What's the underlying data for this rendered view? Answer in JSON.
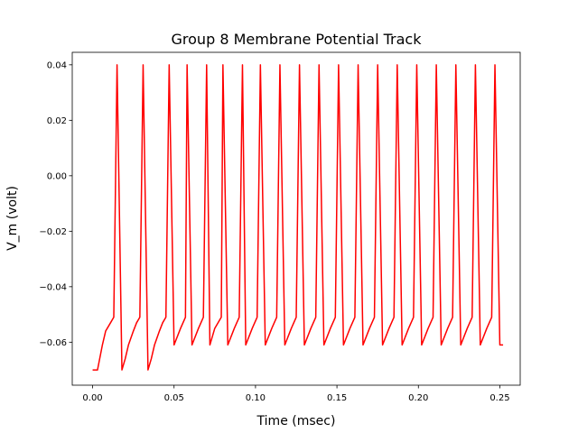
{
  "chart_data": {
    "type": "line",
    "title": "Group 8 Membrane Potential Track",
    "xlabel": "Time (msec)",
    "ylabel": "V_m (volt)",
    "xlim": [
      -0.0125,
      0.2625
    ],
    "ylim": [
      -0.0755,
      0.0445
    ],
    "xticks": [
      0.0,
      0.05,
      0.1,
      0.15,
      0.2,
      0.25
    ],
    "xtick_labels": [
      "0.00",
      "0.05",
      "0.10",
      "0.15",
      "0.20",
      "0.25"
    ],
    "yticks": [
      -0.06,
      -0.04,
      -0.02,
      0.0,
      0.02,
      0.04
    ],
    "ytick_labels": [
      "−0.06",
      "−0.04",
      "−0.02",
      "0.00",
      "0.02",
      "0.04"
    ],
    "grid": false,
    "series": [
      {
        "color": "#ff0000",
        "points": [
          [
            0.0,
            -0.07
          ],
          [
            0.003,
            -0.07
          ],
          [
            0.006,
            -0.061
          ],
          [
            0.008,
            -0.056
          ],
          [
            0.011,
            -0.053
          ],
          [
            0.013,
            -0.051
          ],
          [
            0.015,
            0.04
          ],
          [
            0.018,
            -0.07
          ],
          [
            0.02,
            -0.066
          ],
          [
            0.022,
            -0.061
          ],
          [
            0.025,
            -0.056
          ],
          [
            0.027,
            -0.053
          ],
          [
            0.029,
            -0.051
          ],
          [
            0.031,
            0.04
          ],
          [
            0.034,
            -0.07
          ],
          [
            0.036,
            -0.066
          ],
          [
            0.038,
            -0.061
          ],
          [
            0.041,
            -0.056
          ],
          [
            0.043,
            -0.053
          ],
          [
            0.045,
            -0.051
          ],
          [
            0.047,
            0.04
          ],
          [
            0.05,
            -0.061
          ],
          [
            0.054,
            -0.055
          ],
          [
            0.057,
            -0.051
          ],
          [
            0.058,
            0.04
          ],
          [
            0.061,
            -0.061
          ],
          [
            0.065,
            -0.055
          ],
          [
            0.068,
            -0.051
          ],
          [
            0.07,
            0.04
          ],
          [
            0.072,
            -0.061
          ],
          [
            0.075,
            -0.055
          ],
          [
            0.079,
            -0.051
          ],
          [
            0.08,
            0.04
          ],
          [
            0.083,
            -0.061
          ],
          [
            0.087,
            -0.055
          ],
          [
            0.09,
            -0.051
          ],
          [
            0.092,
            0.04
          ],
          [
            0.094,
            -0.061
          ],
          [
            0.098,
            -0.055
          ],
          [
            0.101,
            -0.051
          ],
          [
            0.103,
            0.04
          ],
          [
            0.106,
            -0.061
          ],
          [
            0.11,
            -0.055
          ],
          [
            0.113,
            -0.051
          ],
          [
            0.115,
            0.04
          ],
          [
            0.118,
            -0.061
          ],
          [
            0.122,
            -0.055
          ],
          [
            0.125,
            -0.051
          ],
          [
            0.127,
            0.04
          ],
          [
            0.13,
            -0.061
          ],
          [
            0.134,
            -0.055
          ],
          [
            0.137,
            -0.051
          ],
          [
            0.139,
            0.04
          ],
          [
            0.142,
            -0.061
          ],
          [
            0.146,
            -0.055
          ],
          [
            0.149,
            -0.051
          ],
          [
            0.151,
            0.04
          ],
          [
            0.154,
            -0.061
          ],
          [
            0.158,
            -0.055
          ],
          [
            0.161,
            -0.051
          ],
          [
            0.163,
            0.04
          ],
          [
            0.166,
            -0.061
          ],
          [
            0.17,
            -0.055
          ],
          [
            0.173,
            -0.051
          ],
          [
            0.175,
            0.04
          ],
          [
            0.178,
            -0.061
          ],
          [
            0.182,
            -0.055
          ],
          [
            0.185,
            -0.051
          ],
          [
            0.187,
            0.04
          ],
          [
            0.19,
            -0.061
          ],
          [
            0.194,
            -0.055
          ],
          [
            0.197,
            -0.051
          ],
          [
            0.199,
            0.04
          ],
          [
            0.202,
            -0.061
          ],
          [
            0.206,
            -0.055
          ],
          [
            0.209,
            -0.051
          ],
          [
            0.211,
            0.04
          ],
          [
            0.214,
            -0.061
          ],
          [
            0.218,
            -0.055
          ],
          [
            0.221,
            -0.051
          ],
          [
            0.223,
            0.04
          ],
          [
            0.226,
            -0.061
          ],
          [
            0.23,
            -0.055
          ],
          [
            0.233,
            -0.051
          ],
          [
            0.235,
            0.04
          ],
          [
            0.238,
            -0.061
          ],
          [
            0.242,
            -0.055
          ],
          [
            0.245,
            -0.051
          ],
          [
            0.247,
            0.04
          ],
          [
            0.25,
            -0.061
          ],
          [
            0.252,
            -0.061
          ]
        ]
      }
    ]
  }
}
